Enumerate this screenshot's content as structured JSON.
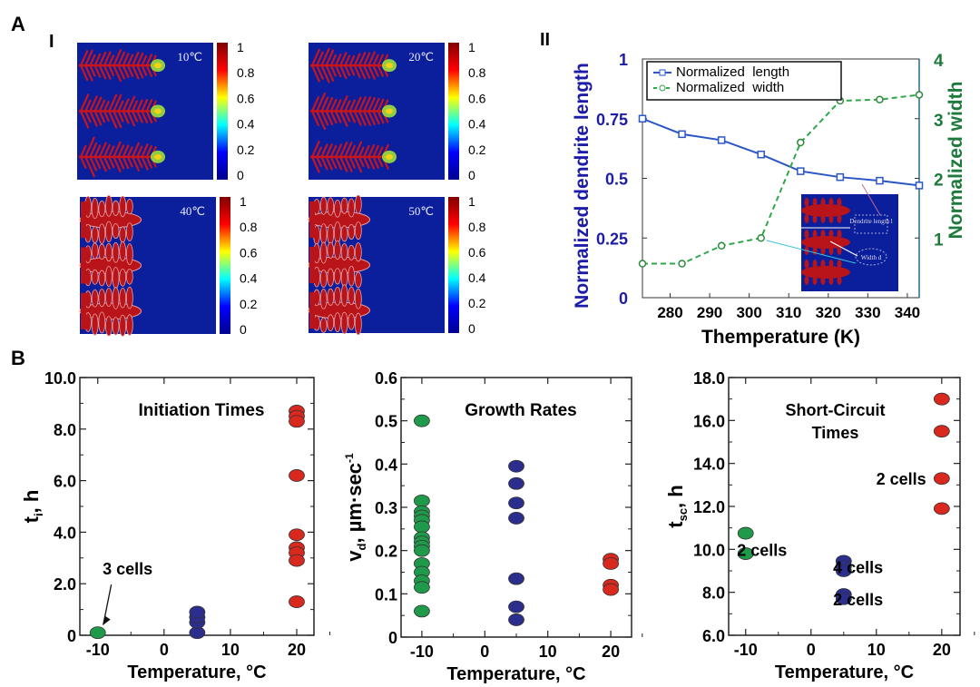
{
  "panel_labels": {
    "a": "A",
    "a1": "I",
    "a2": "II",
    "b": "B"
  },
  "simulations": {
    "images": [
      {
        "label": "10℃",
        "morphology": "fine"
      },
      {
        "label": "20℃",
        "morphology": "fine"
      },
      {
        "label": "40℃",
        "morphology": "coarse"
      },
      {
        "label": "50℃",
        "morphology": "coarse"
      }
    ],
    "colorbar_ticks": [
      "1",
      "0.8",
      "0.6",
      "0.4",
      "0.2",
      "0"
    ],
    "colormap": [
      "#00008f",
      "#0000ff",
      "#00ffff",
      "#ffff00",
      "#ff0000",
      "#800000"
    ]
  },
  "chart_data": [
    {
      "type": "line",
      "xlabel": "Themperature (K)",
      "ylabel": "Normalized dendrite length",
      "y2label": "Normalized width",
      "xlim": [
        273,
        343
      ],
      "ylim": [
        0,
        1
      ],
      "y2lim": [
        0,
        4
      ],
      "xticks": [
        "280",
        "290",
        "300",
        "310",
        "320",
        "330",
        "340"
      ],
      "yticks": [
        "0",
        "0.25",
        "0.5",
        "0.75",
        "1"
      ],
      "y2ticks": [
        "1",
        "2",
        "3",
        "4"
      ],
      "x": [
        273,
        283,
        293,
        303,
        313,
        323,
        333,
        343
      ],
      "series": [
        {
          "name": "Normalized  length",
          "axis": "left",
          "marker": "square",
          "style": "solid",
          "color": "#2a56c6",
          "values": [
            0.75,
            0.685,
            0.66,
            0.6,
            0.53,
            0.505,
            0.49,
            0.47
          ]
        },
        {
          "name": "Normalized  width",
          "axis": "right",
          "marker": "circle",
          "style": "dashed",
          "color": "#2ea84a",
          "values": [
            0.57,
            0.57,
            0.87,
            1.0,
            2.6,
            3.3,
            3.32,
            3.4
          ]
        }
      ],
      "legend": "top-left",
      "inset": {
        "length_label": "Dendrite length l",
        "width_label": "Width d"
      },
      "left_axis_color": "#1c1ca8",
      "right_axis_color": "#1e7a3c"
    },
    {
      "type": "scatter",
      "title": "Initiation Times",
      "xlabel": "Temperature, °C",
      "ylabel": {
        "main": "t",
        "sub": "i",
        "rest": ", h"
      },
      "xlim": [
        -12.7,
        22.6
      ],
      "ylim": [
        0,
        10
      ],
      "xticks": [
        "-10",
        "0",
        "10",
        "20"
      ],
      "yticks": [
        "0",
        "2.0",
        "4.0",
        "6.0",
        "8.0",
        "10.0"
      ],
      "series": [
        {
          "color": "#1f9a4a",
          "x": -10,
          "values": [
            0.1
          ]
        },
        {
          "color": "#2b2e8c",
          "x": 5,
          "values": [
            0.1,
            0.5,
            0.7,
            0.9
          ]
        },
        {
          "color": "#d9281e",
          "x": 20,
          "values": [
            8.7,
            8.5,
            8.3,
            6.2,
            3.9,
            3.4,
            3.2,
            2.9,
            1.3
          ]
        }
      ],
      "annotations": [
        {
          "text": "3 cells",
          "x": -5.5,
          "y": 2.6,
          "arrow_to": [
            -10,
            0.4
          ]
        }
      ]
    },
    {
      "type": "scatter",
      "title": "Growth Rates",
      "xlabel": "Temperature, °C",
      "ylabel": {
        "main": "v",
        "sub": "d",
        "rest": ", µm·sec",
        "sup": "-1"
      },
      "xlim": [
        -13.3,
        23.3
      ],
      "ylim": [
        0,
        0.6
      ],
      "xticks": [
        "-10",
        "0",
        "10",
        "20"
      ],
      "yticks": [
        "0",
        "0.1",
        "0.2",
        "0.3",
        "0.4",
        "0.5",
        "0.6"
      ],
      "series": [
        {
          "color": "#1f9a4a",
          "x": -10,
          "values": [
            0.5,
            0.315,
            0.29,
            0.28,
            0.27,
            0.255,
            0.23,
            0.22,
            0.21,
            0.2,
            0.17,
            0.15,
            0.13,
            0.115,
            0.06
          ]
        },
        {
          "color": "#2b2e8c",
          "x": 5,
          "values": [
            0.395,
            0.355,
            0.31,
            0.275,
            0.135,
            0.07,
            0.04
          ]
        },
        {
          "color": "#d9281e",
          "x": 20,
          "values": [
            0.18,
            0.17,
            0.12,
            0.11
          ]
        }
      ],
      "annotations": []
    },
    {
      "type": "scatter",
      "title": "Short-Circuit\nTimes",
      "xlabel": "Temperature, °C",
      "ylabel": {
        "main": "t",
        "sub": "sc",
        "rest": ", h"
      },
      "xlim": [
        -12.6,
        22.8
      ],
      "ylim": [
        6,
        18
      ],
      "xticks": [
        "-10",
        "0",
        "10",
        "20"
      ],
      "yticks": [
        "6.0",
        "8.0",
        "10.0",
        "12.0",
        "14.0",
        "16.0",
        "18.0"
      ],
      "series": [
        {
          "color": "#1f9a4a",
          "x": -10,
          "values": [
            10.75,
            9.8
          ]
        },
        {
          "color": "#2b2e8c",
          "x": 5,
          "values": [
            9.45,
            9.2,
            9.0,
            7.9,
            7.7
          ]
        },
        {
          "color": "#d9281e",
          "x": 20,
          "values": [
            17.0,
            15.5,
            13.3,
            11.9
          ]
        }
      ],
      "annotations": [
        {
          "text": "2 cells",
          "x": -7.5,
          "y": 10.0
        },
        {
          "text": "4 cells",
          "x": 7.2,
          "y": 9.2
        },
        {
          "text": "2 cells",
          "x": 7.2,
          "y": 7.7
        },
        {
          "text": "2 cells",
          "x": 13.8,
          "y": 13.3
        }
      ]
    }
  ]
}
